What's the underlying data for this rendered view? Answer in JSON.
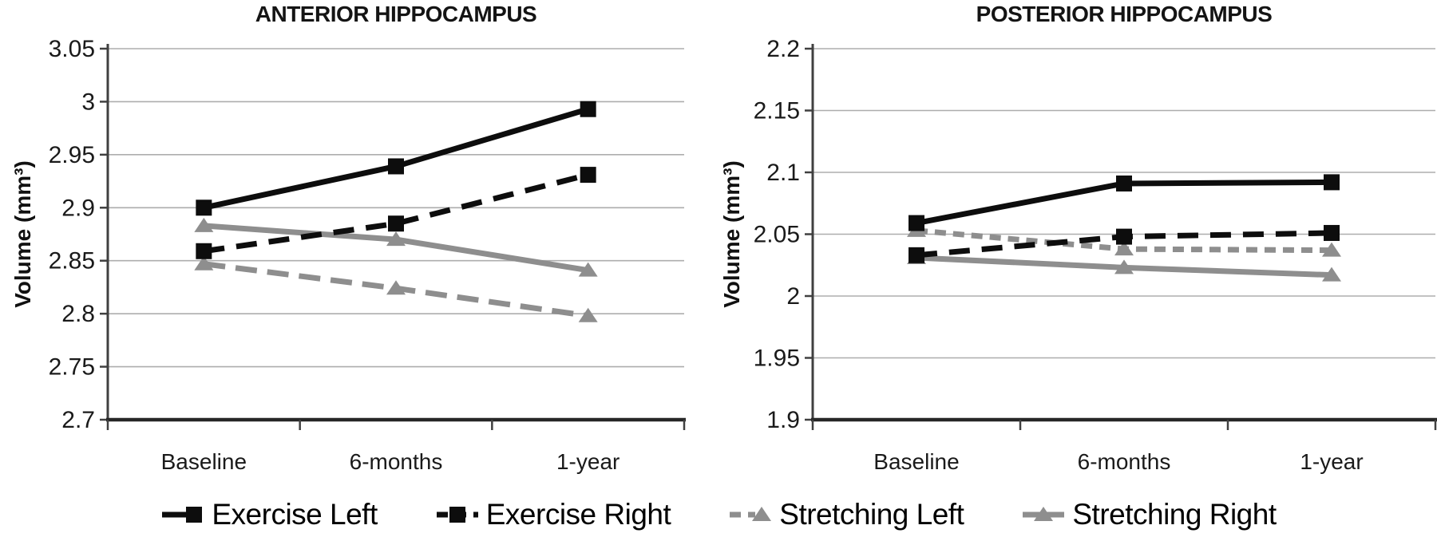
{
  "figure": {
    "background": "#ffffff",
    "grid_color": "#adadad",
    "axis_color": "#404040",
    "text_color": "#1a1a1a"
  },
  "chart_data": [
    {
      "type": "line",
      "title": "ANTERIOR HIPPOCAMPUS",
      "xlabel": "",
      "ylabel": "Volume (mm³)",
      "categories": [
        "Baseline",
        "6-months",
        "1-year"
      ],
      "ylim": [
        2.7,
        3.05
      ],
      "ytick_values": [
        3.05,
        3.0,
        2.95,
        2.9,
        2.85,
        2.8,
        2.75,
        2.7
      ],
      "ytick_labels": [
        "3.05",
        "3",
        "2.95",
        "2.9",
        "2.85",
        "2.8",
        "2.75",
        "2.7"
      ],
      "grid": true,
      "series": [
        {
          "name": "Exercise Left",
          "values": [
            2.9,
            2.939,
            2.993
          ],
          "color": "#0d0d0d",
          "dash": "solid",
          "dash_pattern": null,
          "marker": "square"
        },
        {
          "name": "Exercise Right",
          "values": [
            2.859,
            2.885,
            2.931
          ],
          "color": "#0d0d0d",
          "dash": "dashed",
          "dash_pattern": "26 15",
          "marker": "square"
        },
        {
          "name": "Stretching Left",
          "values": [
            2.847,
            2.824,
            2.798
          ],
          "color": "#8e8e8e",
          "dash": "dashed",
          "dash_pattern": "27 13",
          "marker": "triangle"
        },
        {
          "name": "Stretching Right",
          "values": [
            2.883,
            2.87,
            2.841
          ],
          "color": "#8e8e8e",
          "dash": "solid",
          "dash_pattern": null,
          "marker": "triangle"
        }
      ]
    },
    {
      "type": "line",
      "title": "POSTERIOR HIPPOCAMPUS",
      "xlabel": "",
      "ylabel": "Volume (mm³)",
      "categories": [
        "Baseline",
        "6-months",
        "1-year"
      ],
      "ylim": [
        1.9,
        2.2
      ],
      "ytick_values": [
        2.2,
        2.15,
        2.1,
        2.05,
        2.0,
        1.95,
        1.9
      ],
      "ytick_labels": [
        "2.2",
        "2.15",
        "2.1",
        "2.05",
        "2",
        "1.95",
        "1.9"
      ],
      "grid": true,
      "series": [
        {
          "name": "Exercise Left",
          "values": [
            2.059,
            2.091,
            2.092
          ],
          "color": "#0d0d0d",
          "dash": "solid",
          "dash_pattern": null,
          "marker": "square"
        },
        {
          "name": "Exercise Right",
          "values": [
            2.033,
            2.048,
            2.051
          ],
          "color": "#0d0d0d",
          "dash": "dashed",
          "dash_pattern": "26 15",
          "marker": "square"
        },
        {
          "name": "Stretching Left",
          "values": [
            2.053,
            2.038,
            2.037
          ],
          "color": "#8e8e8e",
          "dash": "dashed",
          "dash_pattern": "14 9",
          "marker": "triangle"
        },
        {
          "name": "Stretching Right",
          "values": [
            2.031,
            2.023,
            2.017
          ],
          "color": "#8e8e8e",
          "dash": "solid",
          "dash_pattern": null,
          "marker": "triangle"
        }
      ]
    }
  ],
  "legend": {
    "position": "bottom",
    "items": [
      {
        "label": "Exercise Left",
        "color": "#0d0d0d",
        "dash": "solid",
        "dash_pattern": null,
        "marker": "square",
        "marker_pos": "end"
      },
      {
        "label": "Exercise Right",
        "color": "#0d0d0d",
        "dash": "dashed",
        "dash_pattern": "14 9",
        "marker": "square",
        "marker_pos": "mid"
      },
      {
        "label": "Stretching Left",
        "color": "#8e8e8e",
        "dash": "dashed",
        "dash_pattern": "14 9",
        "marker": "triangle",
        "marker_pos": "end"
      },
      {
        "label": "Stretching Right",
        "color": "#8e8e8e",
        "dash": "solid",
        "dash_pattern": null,
        "marker": "triangle",
        "marker_pos": "mid"
      }
    ]
  }
}
